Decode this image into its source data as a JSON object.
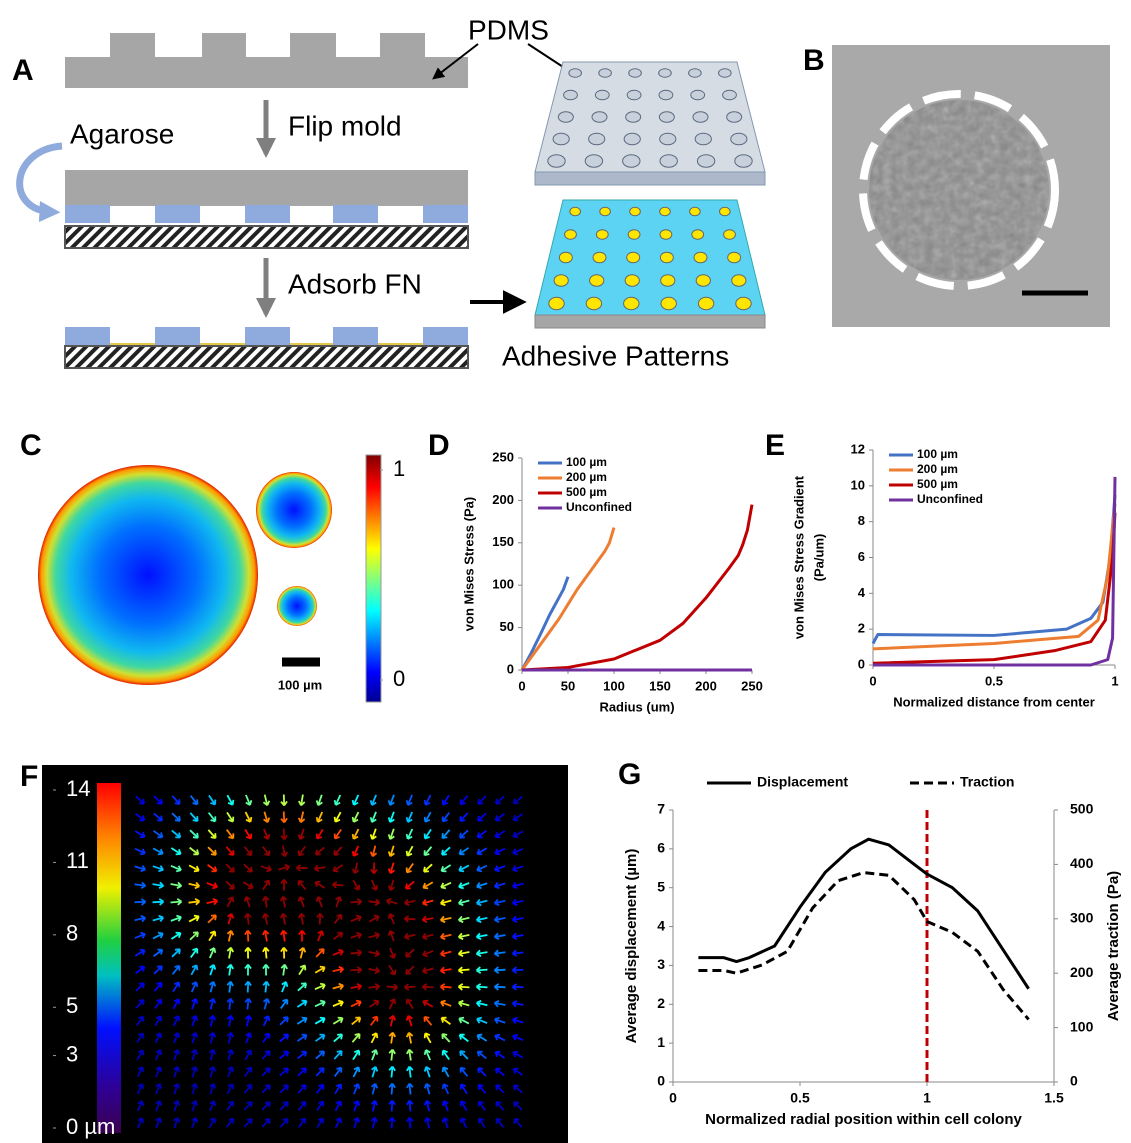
{
  "panels": {
    "labels": [
      "A",
      "B",
      "C",
      "D",
      "E",
      "F",
      "G"
    ]
  },
  "diagram": {
    "pdms": "PDMS",
    "flip": "Flip mold",
    "agarose": "Agarose",
    "adsorb": "Adsorb FN",
    "patterns": "Adhesive Patterns"
  },
  "heatmap": {
    "scale_bar": "100 µm",
    "colorbar": {
      "lim": [
        0,
        1
      ],
      "ticks": [
        1,
        0
      ]
    }
  },
  "displacement_map": {
    "colorbar": {
      "lim": [
        0,
        14
      ],
      "ticks": [
        14,
        11,
        8,
        5,
        3,
        {
          "value": 0,
          "label": "0 µm"
        }
      ]
    }
  },
  "chart_data": [
    {
      "type": "line",
      "ylabel": "von Mises Stress (Pa)",
      "xlabel": "Radius (um)",
      "xlim": [
        0,
        250
      ],
      "ylim": [
        0,
        250
      ],
      "xticks": [
        0,
        50,
        100,
        150,
        200,
        250
      ],
      "yticks": [
        0,
        50,
        100,
        150,
        200,
        250
      ],
      "legend": "upper left",
      "series": [
        {
          "name": "100 µm",
          "color": "#4472c4",
          "x": [
            0,
            10,
            20,
            30,
            40,
            45,
            50
          ],
          "values": [
            0,
            20,
            42,
            65,
            85,
            95,
            110
          ]
        },
        {
          "name": "200 µm",
          "color": "#ed7d31",
          "x": [
            0,
            20,
            40,
            60,
            80,
            90,
            95,
            100
          ],
          "values": [
            0,
            30,
            60,
            95,
            125,
            140,
            150,
            168
          ]
        },
        {
          "name": "500 µm",
          "color": "#c00000",
          "x": [
            0,
            50,
            100,
            150,
            175,
            200,
            225,
            235,
            240,
            245,
            250
          ],
          "values": [
            0,
            3,
            13,
            35,
            55,
            85,
            120,
            135,
            148,
            165,
            195
          ]
        },
        {
          "name": "Unconfined",
          "color": "#7030a0",
          "x": [
            0,
            250
          ],
          "values": [
            0,
            0
          ]
        }
      ]
    },
    {
      "type": "line",
      "ylabel": [
        "von Mises Stress Gradient",
        "(Pa/um)"
      ],
      "xlabel": "Normalized distance from center",
      "xlim": [
        0,
        1
      ],
      "ylim": [
        0,
        12
      ],
      "xticks": [
        0,
        0.5,
        1
      ],
      "yticks": [
        0,
        2,
        4,
        6,
        8,
        10,
        12
      ],
      "legend": "upper left",
      "series": [
        {
          "name": "100 µm",
          "color": "#4472c4",
          "x": [
            0,
            0.02,
            0.5,
            0.8,
            0.9,
            0.95,
            0.98,
            1
          ],
          "values": [
            1.2,
            1.7,
            1.65,
            2.0,
            2.6,
            3.5,
            6,
            9.5
          ]
        },
        {
          "name": "200 µm",
          "color": "#ed7d31",
          "x": [
            0,
            0.5,
            0.85,
            0.93,
            0.97,
            1
          ],
          "values": [
            0.9,
            1.2,
            1.6,
            2.5,
            5,
            9
          ]
        },
        {
          "name": "500 µm",
          "color": "#c00000",
          "x": [
            0,
            0.5,
            0.75,
            0.9,
            0.96,
            0.99,
            1
          ],
          "values": [
            0.1,
            0.3,
            0.8,
            1.3,
            2.5,
            6,
            8.5
          ]
        },
        {
          "name": "Unconfined",
          "color": "#7030a0",
          "x": [
            0,
            0.9,
            0.97,
            0.99,
            1
          ],
          "values": [
            0,
            0,
            0.3,
            1.5,
            10.5
          ]
        }
      ]
    },
    {
      "type": "line",
      "ylabel": "Average displacement (µm)",
      "y2label": "Average traction (Pa)",
      "xlabel": "Normalized radial position within cell colony",
      "xlim": [
        0,
        1.5
      ],
      "ylim": [
        0,
        7
      ],
      "y2lim": [
        0,
        500
      ],
      "xticks": [
        0,
        0.5,
        1,
        1.5
      ],
      "yticks": [
        0,
        1,
        2,
        3,
        4,
        5,
        6,
        7
      ],
      "y2ticks": [
        0,
        100,
        200,
        300,
        400,
        500
      ],
      "legend": "top",
      "vline": {
        "x": 1,
        "color": "#c00000"
      },
      "series": [
        {
          "name": "Displacement",
          "color": "#000000",
          "x": [
            0.1,
            0.2,
            0.25,
            0.3,
            0.4,
            0.5,
            0.6,
            0.7,
            0.77,
            0.85,
            0.95,
            1,
            1.1,
            1.2,
            1.3,
            1.4
          ],
          "values": [
            3.2,
            3.2,
            3.1,
            3.2,
            3.5,
            4.5,
            5.4,
            6.0,
            6.25,
            6.1,
            5.6,
            5.35,
            5.0,
            4.4,
            3.4,
            2.4
          ]
        },
        {
          "name": "Traction",
          "color": "#000000",
          "dash": true,
          "axis": "y2",
          "x": [
            0.1,
            0.2,
            0.25,
            0.35,
            0.45,
            0.55,
            0.65,
            0.75,
            0.85,
            0.95,
            1,
            1.1,
            1.2,
            1.3,
            1.4
          ],
          "values": [
            205,
            205,
            200,
            215,
            240,
            320,
            370,
            385,
            380,
            335,
            295,
            275,
            240,
            170,
            115
          ]
        }
      ]
    }
  ]
}
